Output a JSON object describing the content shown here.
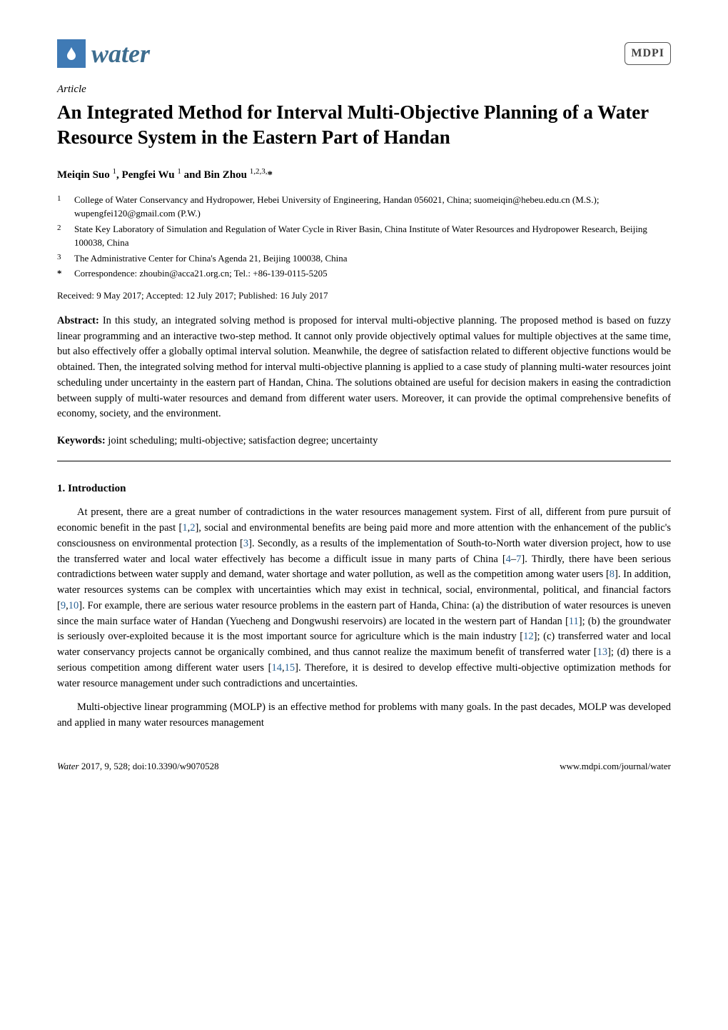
{
  "header": {
    "journal_name": "water",
    "publisher_logo": "MDPI",
    "logo_bg_color": "#3f7ab5",
    "journal_name_color": "#3d6d8f"
  },
  "article": {
    "type": "Article",
    "title": "An Integrated Method for Interval Multi-Objective Planning of a Water Resource System in the Eastern Part of Handan",
    "authors_html": "Meiqin Suo ¹, Pengfei Wu ¹ and Bin Zhou ¹,²,³,*",
    "affiliations": [
      {
        "num": "1",
        "text": "College of Water Conservancy and Hydropower, Hebei University of Engineering, Handan 056021, China; suomeiqin@hebeu.edu.cn (M.S.); wupengfei120@gmail.com (P.W.)"
      },
      {
        "num": "2",
        "text": "State Key Laboratory of Simulation and Regulation of Water Cycle in River Basin, China Institute of Water Resources and Hydropower Research, Beijing 100038, China"
      },
      {
        "num": "3",
        "text": "The Administrative Center for China's Agenda 21, Beijing 100038, China"
      }
    ],
    "correspondence": {
      "mark": "*",
      "text": "Correspondence: zhoubin@acca21.org.cn; Tel.: +86-139-0115-5205"
    },
    "dates": "Received: 9 May 2017; Accepted: 12 July 2017; Published: 16 July 2017",
    "abstract_label": "Abstract:",
    "abstract": "In this study, an integrated solving method is proposed for interval multi-objective planning. The proposed method is based on fuzzy linear programming and an interactive two-step method. It cannot only provide objectively optimal values for multiple objectives at the same time, but also effectively offer a globally optimal interval solution. Meanwhile, the degree of satisfaction related to different objective functions would be obtained. Then, the integrated solving method for interval multi-objective planning is applied to a case study of planning multi-water resources joint scheduling under uncertainty in the eastern part of Handan, China. The solutions obtained are useful for decision makers in easing the contradiction between supply of multi-water resources and demand from different water users. Moreover, it can provide the optimal comprehensive benefits of economy, society, and the environment.",
    "keywords_label": "Keywords:",
    "keywords": "joint scheduling; multi-objective; satisfaction degree; uncertainty"
  },
  "sections": {
    "s1": {
      "heading": "1. Introduction",
      "p1_parts": [
        "At present, there are a great number of contradictions in the water resources management system. First of all, different from pure pursuit of economic benefit in the past [",
        "1",
        ",",
        "2",
        "], social and environmental benefits are being paid more and more attention with the enhancement of the public's consciousness on environmental protection [",
        "3",
        "]. Secondly, as a results of the implementation of South-to-North water diversion project, how to use the transferred water and local water effectively has become a difficult issue in many parts of China [",
        "4",
        "–",
        "7",
        "]. Thirdly, there have been serious contradictions between water supply and demand, water shortage and water pollution, as well as the competition among water users [",
        "8",
        "]. In addition, water resources systems can be complex with uncertainties which may exist in technical, social, environmental, political, and financial factors [",
        "9",
        ",",
        "10",
        "]. For example, there are serious water resource problems in the eastern part of Handa, China: (a) the distribution of water resources is uneven since the main surface water of Handan (Yuecheng and Dongwushi reservoirs) are located in the western part of Handan [",
        "11",
        "]; (b) the groundwater is seriously over-exploited because it is the most important source for agriculture which is the main industry [",
        "12",
        "]; (c) transferred water and local water conservancy projects cannot be organically combined, and thus cannot realize the maximum benefit of transferred water [",
        "13",
        "]; (d) there is a serious competition among different water users [",
        "14",
        ",",
        "15",
        "]. Therefore, it is desired to develop effective multi-objective optimization methods for water resource management under such contradictions and uncertainties."
      ],
      "p2": "Multi-objective linear programming (MOLP) is an effective method for problems with many goals. In the past decades, MOLP was developed and applied in many water resources management"
    }
  },
  "footer": {
    "left_italic": "Water",
    "left_rest": " 2017, 9, 528; doi:10.3390/w9070528",
    "right": "www.mdpi.com/journal/water"
  },
  "styling": {
    "body_font_size": 14.5,
    "title_font_size": 27,
    "ref_color": "#2a6496",
    "text_color": "#000000",
    "bg_color": "#ffffff"
  }
}
